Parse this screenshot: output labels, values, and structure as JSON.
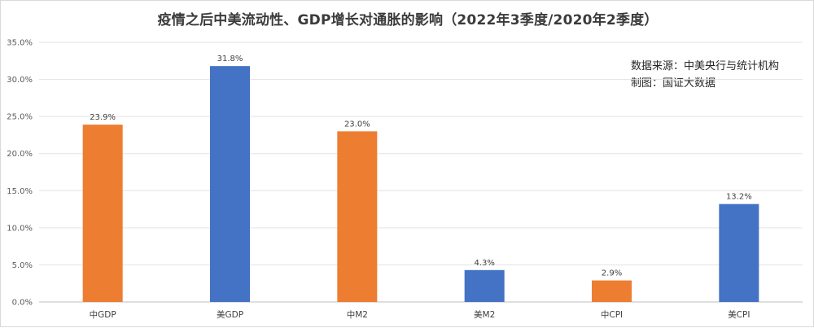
{
  "chart_data": {
    "type": "bar",
    "title": "疫情之后中美流动性、GDP增长对通胀的影响（2022年3季度/2020年2季度）",
    "categories": [
      "中GDP",
      "美GDP",
      "中M2",
      "美M2",
      "中CPI",
      "美CPI"
    ],
    "values": [
      23.9,
      31.8,
      23.0,
      4.3,
      2.9,
      13.2
    ],
    "data_labels": [
      "23.9%",
      "31.8%",
      "23.0%",
      "4.3%",
      "2.9%",
      "13.2%"
    ],
    "bar_colors": [
      "#ED7D31",
      "#4472C4",
      "#ED7D31",
      "#4472C4",
      "#ED7D31",
      "#4472C4"
    ],
    "ylim": [
      0,
      35
    ],
    "yticks": [
      0,
      5,
      10,
      15,
      20,
      25,
      30,
      35
    ],
    "ytick_labels": [
      "0.0%",
      "5.0%",
      "10.0%",
      "15.0%",
      "20.0%",
      "25.0%",
      "30.0%",
      "35.0%"
    ],
    "grid": true,
    "legend": "none",
    "xlabel": "",
    "ylabel": ""
  },
  "notes": {
    "source": "数据来源：中美央行与统计机构",
    "credit": "制图：国证大数据"
  }
}
